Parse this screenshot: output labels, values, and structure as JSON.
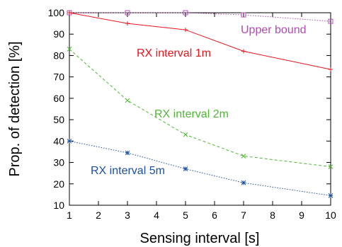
{
  "chart_data": {
    "type": "line",
    "xlabel": "Sensing interval [s]",
    "ylabel": "Prop. of detection [%]",
    "xlim": [
      1,
      10
    ],
    "ylim": [
      10,
      100
    ],
    "xticks": [
      "1",
      "2",
      "3",
      "4",
      "5",
      "6",
      "7",
      "8",
      "9",
      "10"
    ],
    "yticks": [
      "10",
      "20",
      "30",
      "40",
      "50",
      "60",
      "70",
      "80",
      "90",
      "100"
    ],
    "grid": false,
    "legend": "none",
    "series": [
      {
        "name": "Upper bound",
        "color": "#b04cb0",
        "line_style": "dotted",
        "marker": "square",
        "points": [
          [
            1,
            100
          ],
          [
            3,
            100
          ],
          [
            5,
            100
          ],
          [
            7,
            99
          ],
          [
            10,
            96
          ]
        ]
      },
      {
        "name": "RX interval 1m",
        "color": "#e8141c",
        "line_style": "solid",
        "marker": "plus",
        "points": [
          [
            1,
            100
          ],
          [
            3,
            95
          ],
          [
            5,
            92
          ],
          [
            7,
            82
          ],
          [
            10,
            73.5
          ]
        ]
      },
      {
        "name": "RX interval 2m",
        "color": "#4fb833",
        "line_style": "dashed",
        "marker": "x",
        "points": [
          [
            1,
            83
          ],
          [
            3,
            59
          ],
          [
            5,
            43
          ],
          [
            7,
            33
          ],
          [
            10,
            28
          ]
        ]
      },
      {
        "name": "RX interval 5m",
        "color": "#1c4fa0",
        "line_style": "dotted",
        "marker": "asterisk",
        "points": [
          [
            1,
            40
          ],
          [
            3,
            34.5
          ],
          [
            5,
            27
          ],
          [
            7,
            20.5
          ],
          [
            10,
            14.5
          ]
        ]
      }
    ],
    "annotations": [
      {
        "text": "Upper bound",
        "series": 0
      },
      {
        "text": "RX interval 1m",
        "series": 1
      },
      {
        "text": "RX interval 2m",
        "series": 2
      },
      {
        "text": "RX interval 5m",
        "series": 3
      }
    ]
  }
}
